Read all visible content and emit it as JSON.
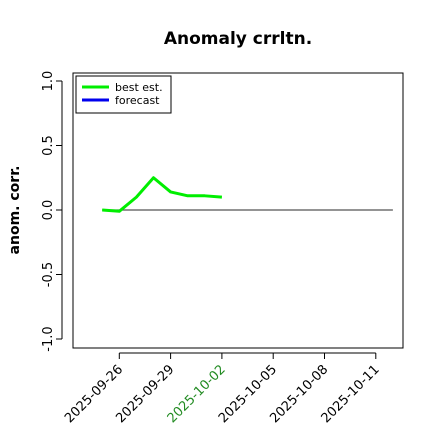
{
  "chart_data": {
    "type": "line",
    "title": "Anomaly crrltn.",
    "xlabel": "",
    "ylabel": "anom. corr.",
    "ylim": [
      -1.0,
      1.0
    ],
    "y_ticks": [
      "-1.0",
      "-0.5",
      "0.0",
      "0.5",
      "1.0"
    ],
    "xlim": [
      "2025-09-23",
      "2025-10-12"
    ],
    "x_ticks": [
      "2025-09-26",
      "2025-09-29",
      "2025-10-02",
      "2025-10-05",
      "2025-10-08",
      "2025-10-11"
    ],
    "highlight_tick": "2025-10-02",
    "highlight_color": "#228B22",
    "reference_line": {
      "y": 0.0,
      "x_from": "2025-09-25",
      "x_to": "2025-10-12",
      "color": "#555555"
    },
    "series": [
      {
        "name": "best est.",
        "color": "#00ee00",
        "x": [
          "2025-09-25",
          "2025-09-26",
          "2025-09-27",
          "2025-09-28",
          "2025-09-29",
          "2025-09-30",
          "2025-10-01",
          "2025-10-02"
        ],
        "values": [
          0.0,
          -0.01,
          0.1,
          0.25,
          0.14,
          0.11,
          0.11,
          0.1
        ]
      },
      {
        "name": "forecast",
        "color": "#0000ee",
        "x": [],
        "values": []
      }
    ],
    "legend_position": "top-left",
    "grid": false
  }
}
